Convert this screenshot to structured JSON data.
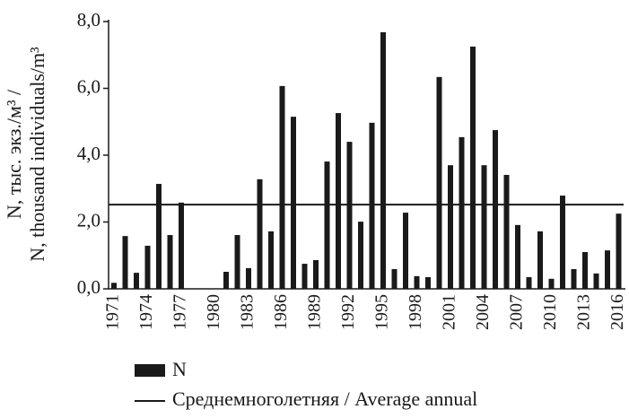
{
  "chart_data": {
    "type": "bar",
    "y_label_lines": [
      "N, тыс. экз./м³ /",
      "N, thousand individuals/m³"
    ],
    "categories": [
      "1971",
      null,
      null,
      "1974",
      null,
      null,
      "1977",
      null,
      null,
      "1980",
      null,
      null,
      "1983",
      null,
      null,
      "1986",
      null,
      null,
      "1989",
      null,
      null,
      "1992",
      null,
      null,
      "1995",
      null,
      null,
      "1998",
      null,
      null,
      "2001",
      null,
      null,
      "2004",
      null,
      null,
      "2007",
      null,
      null,
      "2010",
      null,
      null,
      "2013",
      null,
      null,
      "2016"
    ],
    "series": [
      {
        "name": "N",
        "color": "#1a1a1a",
        "values": [
          0.18,
          1.58,
          0.48,
          1.29,
          3.14,
          1.61,
          2.58,
          0,
          0,
          0,
          0.51,
          1.61,
          0.62,
          3.28,
          1.72,
          6.07,
          5.15,
          0.75,
          0.86,
          3.81,
          5.26,
          4.4,
          2.01,
          4.97,
          7.68,
          0.59,
          2.28,
          0.38,
          0.35,
          6.34,
          3.7,
          4.54,
          7.25,
          3.7,
          4.75,
          3.41,
          1.91,
          0.35,
          1.72,
          0.3,
          2.79,
          0.59,
          1.1,
          0.46,
          1.15,
          2.25
        ]
      }
    ],
    "average": {
      "name": "Среднемноголетняя / Average annual",
      "value": 2.52,
      "color": "#1a1a1a"
    },
    "ylim": [
      0,
      8
    ],
    "yticks": [
      {
        "value": 0,
        "label": "0,0"
      },
      {
        "value": 2,
        "label": "2,0"
      },
      {
        "value": 4,
        "label": "4,0"
      },
      {
        "value": 6,
        "label": "6,0"
      },
      {
        "value": 8,
        "label": "8,0"
      }
    ]
  }
}
